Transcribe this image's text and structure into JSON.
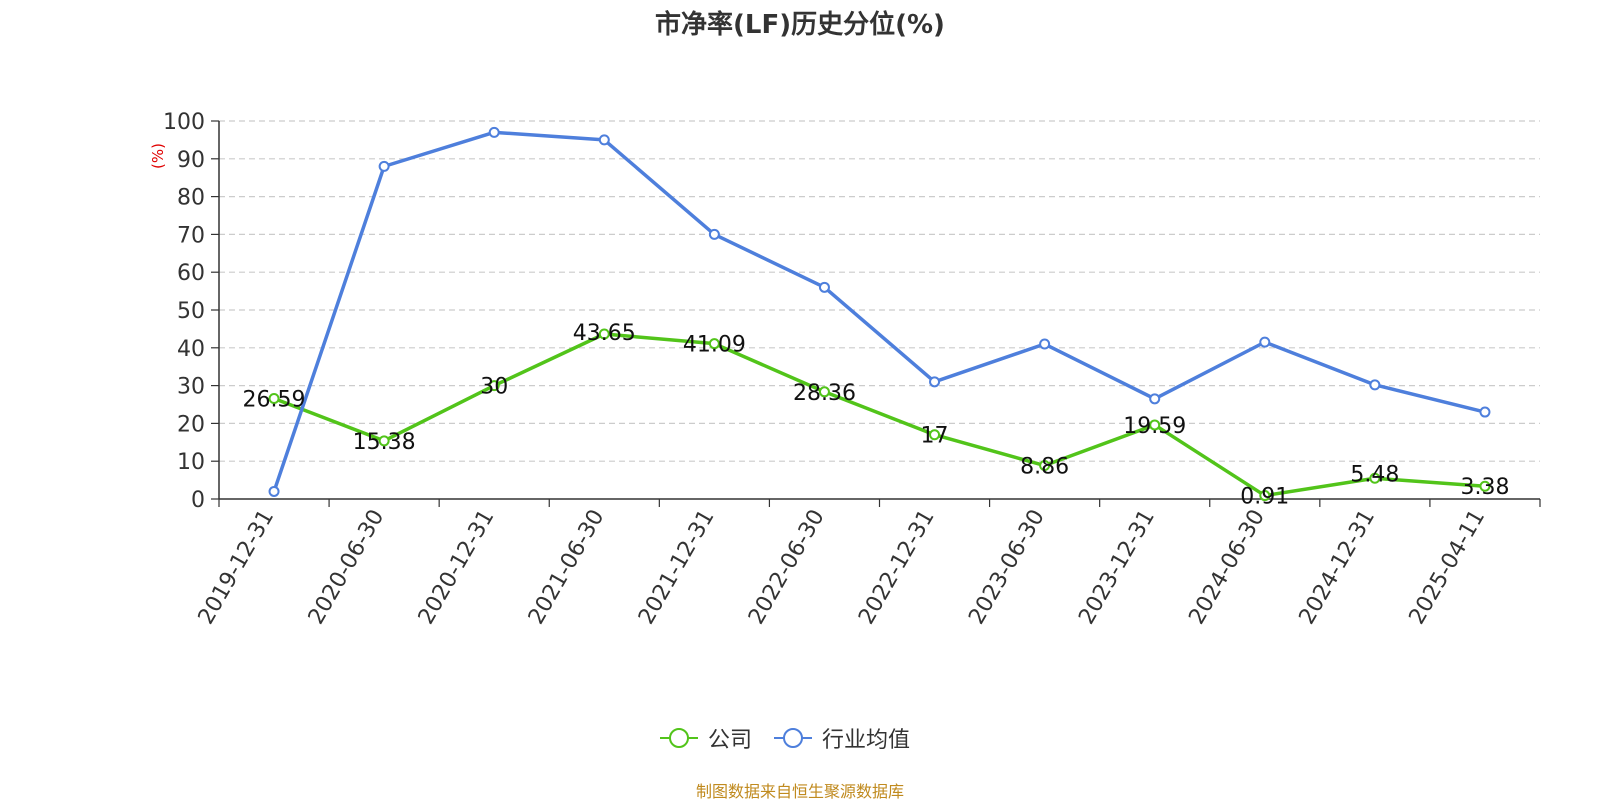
{
  "title": "市净率(LF)历史分位(%)",
  "source": "制图数据来自恒生聚源数据库",
  "colors": {
    "company": "#52c41a",
    "industry": "#4e7fdc",
    "ylabel": "#e00000",
    "source": "#c08a1e"
  },
  "chart_data": {
    "type": "line",
    "title": "市净率(LF)历史分位(%)",
    "ylabel": "(%)",
    "xlabel": "",
    "ylim": [
      0,
      100
    ],
    "yticks": [
      0,
      10,
      20,
      30,
      40,
      50,
      60,
      70,
      80,
      90,
      100
    ],
    "grid": true,
    "legend_position": "bottom-center",
    "categories": [
      "2019-12-31",
      "2020-06-30",
      "2020-12-31",
      "2021-06-30",
      "2021-12-31",
      "2022-06-30",
      "2022-12-31",
      "2023-06-30",
      "2023-12-31",
      "2024-06-30",
      "2024-12-31",
      "2025-04-11"
    ],
    "series": [
      {
        "name": "公司",
        "values": [
          26.59,
          15.38,
          30,
          43.65,
          41.09,
          28.36,
          17,
          8.86,
          19.59,
          0.91,
          5.48,
          3.38
        ],
        "labels": [
          "26.59",
          "15.38",
          "30",
          "43.65",
          "41.09",
          "28.36",
          "17",
          "8.86",
          "19.59",
          "0.91",
          "5.48",
          "3.38"
        ]
      },
      {
        "name": "行业均值",
        "values": [
          2,
          88,
          97,
          95,
          70,
          56,
          31,
          41,
          26.5,
          41.5,
          30.2,
          23
        ]
      }
    ]
  }
}
